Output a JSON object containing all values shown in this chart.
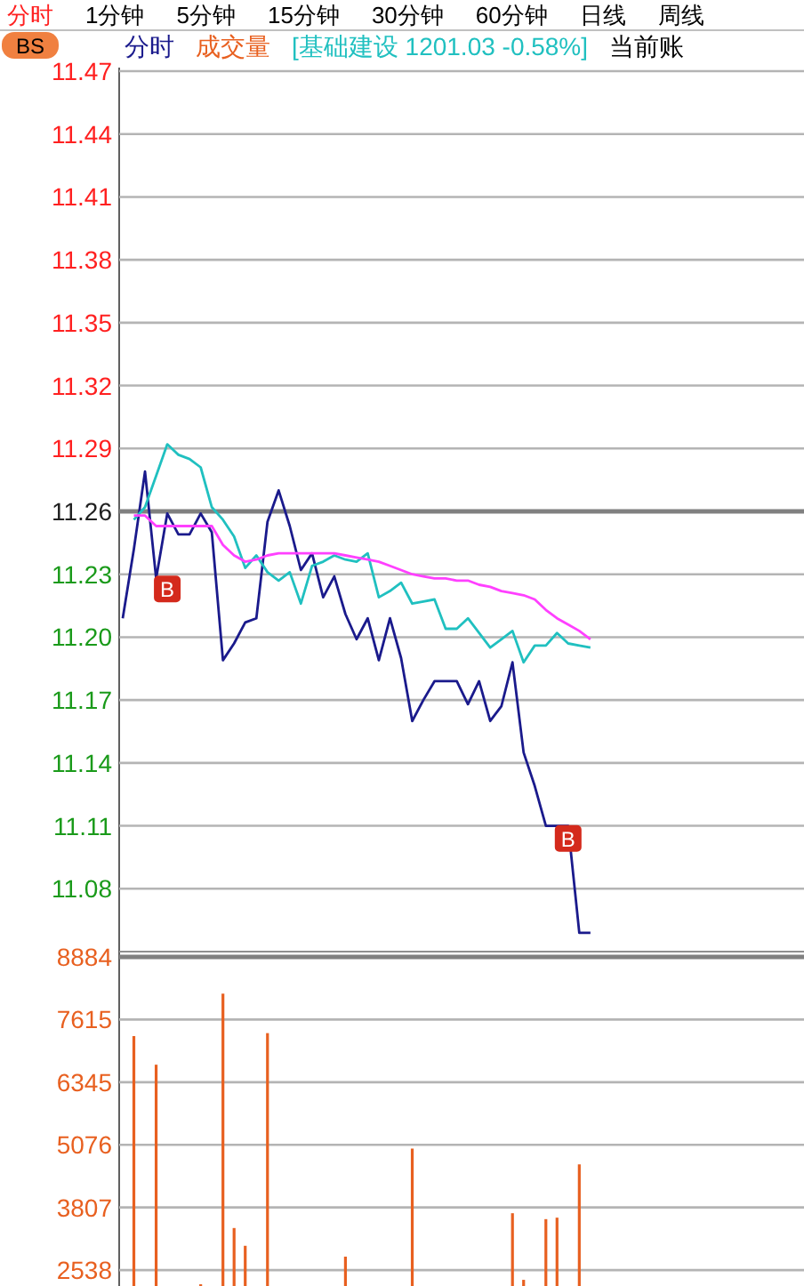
{
  "chart_data": [
    {
      "type": "line",
      "categories": [
        null,
        null,
        null,
        null,
        null,
        null,
        null,
        null,
        null,
        null,
        null,
        null,
        null,
        null,
        null,
        null,
        null,
        null,
        null,
        null,
        null,
        null,
        null,
        null,
        null,
        null,
        null,
        null,
        null,
        null,
        null,
        null,
        null,
        null,
        null,
        null,
        null,
        null,
        null,
        null,
        null,
        null,
        null,
        null,
        null,
        null,
        null,
        null,
        null,
        null,
        null,
        null,
        null,
        null,
        null,
        null,
        null,
        null,
        null,
        null,
        null,
        null
      ],
      "ylim": [
        11.05,
        11.47
      ],
      "yticks": [
        11.47,
        11.44,
        11.41,
        11.38,
        11.35,
        11.32,
        11.29,
        11.26,
        11.23,
        {
          "value": 11.2,
          "label": "11.20"
        },
        11.17,
        11.14,
        11.11,
        11.08
      ],
      "tick_labels": "y",
      "grid": "y",
      "series": [
        {
          "name": "分时",
          "color": "#1a1a8c",
          "values": [
            11.209,
            11.242,
            11.279,
            11.228,
            11.259,
            11.249,
            11.249,
            11.259,
            11.25,
            11.189,
            11.197,
            11.207,
            11.209,
            11.255,
            11.27,
            11.253,
            11.232,
            11.24,
            11.219,
            11.229,
            11.211,
            11.199,
            11.209,
            11.189,
            11.209,
            11.19,
            11.16,
            11.17,
            11.179,
            11.179,
            11.179,
            11.168,
            11.179,
            11.16,
            11.167,
            11.188,
            11.145,
            11.129,
            11.11,
            11.11,
            11.11,
            11.059,
            11.059,
            null,
            null,
            null,
            null,
            null,
            null,
            null,
            null,
            null,
            null,
            null,
            null,
            null,
            null,
            null,
            null,
            null,
            null,
            null
          ]
        },
        {
          "name": "[基础建设 1201.03 -0.58%]",
          "color": "#20c0c0",
          "values": [
            null,
            11.256,
            11.262,
            11.277,
            11.292,
            11.287,
            11.285,
            11.281,
            11.262,
            11.256,
            11.248,
            11.233,
            11.239,
            11.231,
            11.227,
            11.231,
            11.216,
            11.234,
            11.236,
            11.239,
            11.237,
            11.236,
            11.24,
            11.219,
            11.222,
            11.226,
            11.216,
            11.217,
            11.218,
            11.204,
            11.204,
            11.209,
            11.202,
            11.195,
            11.199,
            11.203,
            11.188,
            11.196,
            11.196,
            11.202,
            11.197,
            11.196,
            11.195,
            null,
            null,
            null,
            null,
            null,
            null,
            null,
            null,
            null,
            null,
            null,
            null,
            null,
            null,
            null,
            null,
            null,
            null,
            null
          ]
        },
        {
          "color": "#ff40ff",
          "values": [
            null,
            11.258,
            11.258,
            11.253,
            11.253,
            11.253,
            11.253,
            11.253,
            11.253,
            11.244,
            11.239,
            11.236,
            11.237,
            11.239,
            11.24,
            11.24,
            11.24,
            11.24,
            11.24,
            11.24,
            11.239,
            11.238,
            11.237,
            11.236,
            11.234,
            11.232,
            11.23,
            11.229,
            11.228,
            11.228,
            11.227,
            11.227,
            11.225,
            11.224,
            11.222,
            11.221,
            11.22,
            11.218,
            11.213,
            11.209,
            11.206,
            11.203,
            11.199,
            null,
            null,
            null,
            null,
            null,
            null,
            null,
            null,
            null,
            null,
            null,
            null,
            null,
            null,
            null,
            null,
            null,
            null,
            null
          ]
        },
        {
          "type": "scatter",
          "name": "B",
          "color": "#d42a1c",
          "marker": "square",
          "values": [
            null,
            null,
            null,
            null,
            11.223,
            null,
            null,
            null,
            null,
            null,
            null,
            null,
            null,
            null,
            null,
            null,
            null,
            null,
            null,
            null,
            null,
            null,
            null,
            null,
            null,
            null,
            null,
            null,
            null,
            null,
            null,
            null,
            null,
            null,
            null,
            null,
            null,
            null,
            null,
            null,
            11.104,
            null,
            null,
            null,
            null,
            null,
            null,
            null,
            null,
            null,
            null,
            null,
            null,
            null,
            null,
            null,
            null,
            null,
            null,
            null,
            null,
            null
          ]
        }
      ],
      "ref_lines": [
        {
          "axis": "y",
          "value": 11.26,
          "color": "#808080"
        }
      ],
      "annotations": [
        "BS",
        "分时",
        "1分钟",
        "5分钟",
        "15分钟",
        "30分钟",
        "60分钟",
        "日线",
        "周线",
        "当前账"
      ]
    },
    {
      "type": "bar",
      "categories": [
        null,
        null,
        null,
        null,
        null,
        null,
        null,
        null,
        null,
        null,
        null,
        null,
        null,
        null,
        null,
        null,
        null,
        null,
        null,
        null,
        null,
        null,
        null,
        null,
        null,
        null,
        null,
        null,
        null,
        null,
        null,
        null,
        null,
        null,
        null,
        null,
        null,
        null,
        null,
        null,
        null,
        null,
        null,
        null,
        null,
        null,
        null,
        null,
        null,
        null,
        null,
        null,
        null,
        null,
        null,
        null,
        null,
        null,
        null,
        null,
        null,
        null
      ],
      "ylim": [
        2215,
        8884
      ],
      "yticks": [
        8884,
        7615,
        6345,
        5076,
        3807,
        2538
      ],
      "tick_labels": "y",
      "grid": "y",
      "series": [
        {
          "name": "成交量",
          "color": "#e86020",
          "values": [
            null,
            7280,
            null,
            6700,
            null,
            null,
            null,
            2250,
            null,
            8140,
            3390,
            3030,
            null,
            7340,
            null,
            null,
            null,
            null,
            null,
            null,
            2810,
            null,
            null,
            null,
            null,
            null,
            5000,
            null,
            null,
            null,
            null,
            null,
            null,
            null,
            null,
            3690,
            2340,
            null,
            3570,
            3600,
            null,
            4680,
            null,
            null,
            null,
            null,
            null,
            null,
            null,
            null,
            null,
            null,
            null,
            null,
            null,
            null,
            null,
            null,
            null,
            null,
            null,
            null
          ]
        }
      ],
      "ref_lines": [
        {
          "axis": "y",
          "value": 8884,
          "color": "#808080"
        }
      ]
    }
  ]
}
